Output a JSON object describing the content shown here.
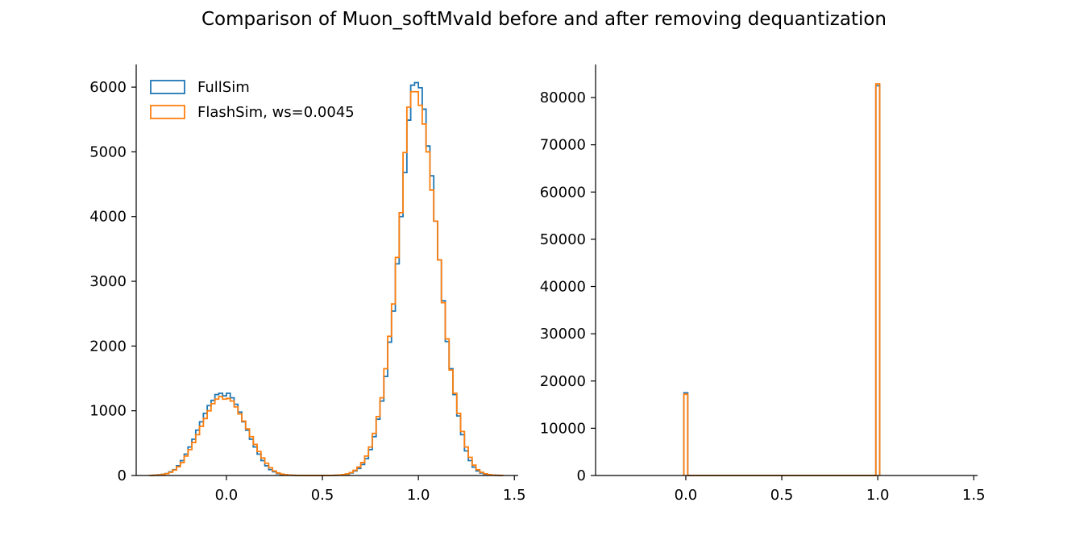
{
  "figure": {
    "title": "Comparison of Muon_softMvaId before and after removing dequantization"
  },
  "chart_data": [
    {
      "type": "histogram-step",
      "name": "with-dequantization",
      "xlim": [
        -0.47,
        1.52
      ],
      "ylim": [
        0,
        6350
      ],
      "xticks": [
        0.0,
        0.5,
        1.0,
        1.5
      ],
      "xtick_labels": [
        "0.0",
        "0.5",
        "1.0",
        "1.5"
      ],
      "yticks": [
        0,
        1000,
        2000,
        3000,
        4000,
        5000,
        6000
      ],
      "ytick_labels": [
        "0",
        "1000",
        "2000",
        "3000",
        "4000",
        "5000",
        "6000"
      ],
      "legend": {
        "placement": "top-left",
        "entries": [
          "FullSim",
          "FlashSim, ws=0.0045"
        ]
      },
      "bin_edges": [
        -0.4,
        -0.38,
        -0.36,
        -0.34,
        -0.32,
        -0.3,
        -0.28,
        -0.26,
        -0.24,
        -0.22,
        -0.2,
        -0.18,
        -0.16,
        -0.14,
        -0.12,
        -0.1,
        -0.08,
        -0.06,
        -0.04,
        -0.02,
        0.0,
        0.02,
        0.04,
        0.06,
        0.08,
        0.1,
        0.12,
        0.14,
        0.16,
        0.18,
        0.2,
        0.22,
        0.24,
        0.26,
        0.28,
        0.3,
        0.32,
        0.34,
        0.36,
        0.38,
        0.4,
        0.42,
        0.44,
        0.46,
        0.48,
        0.5,
        0.52,
        0.54,
        0.56,
        0.58,
        0.6,
        0.62,
        0.64,
        0.66,
        0.68,
        0.7,
        0.72,
        0.74,
        0.76,
        0.78,
        0.8,
        0.82,
        0.84,
        0.86,
        0.88,
        0.9,
        0.92,
        0.94,
        0.96,
        0.98,
        1.0,
        1.02,
        1.04,
        1.06,
        1.08,
        1.1,
        1.12,
        1.14,
        1.16,
        1.18,
        1.2,
        1.22,
        1.24,
        1.26,
        1.28,
        1.3,
        1.32,
        1.34,
        1.36,
        1.38,
        1.4,
        1.42,
        1.44
      ],
      "series": [
        {
          "name": "FullSim",
          "color": "#1f77b4",
          "values": [
            2,
            5,
            10,
            17,
            30,
            58,
            90,
            150,
            230,
            330,
            440,
            560,
            700,
            830,
            960,
            1080,
            1160,
            1250,
            1270,
            1230,
            1270,
            1200,
            1100,
            980,
            830,
            700,
            560,
            440,
            330,
            230,
            150,
            90,
            58,
            30,
            17,
            10,
            5,
            3,
            2,
            1,
            1,
            1,
            1,
            1,
            1,
            1,
            1,
            2,
            3,
            5,
            10,
            20,
            40,
            70,
            110,
            170,
            260,
            400,
            600,
            870,
            1150,
            1530,
            2060,
            2540,
            3270,
            4000,
            4680,
            5490,
            6030,
            6070,
            5990,
            5660,
            5090,
            4630,
            3930,
            3330,
            2700,
            2070,
            1650,
            1250,
            920,
            630,
            380,
            230,
            130,
            70,
            40,
            20,
            10,
            5,
            3,
            1
          ]
        },
        {
          "name": "FlashSim, ws=0.0045",
          "color": "#ff7f0e",
          "values": [
            2,
            4,
            9,
            16,
            28,
            50,
            84,
            135,
            200,
            300,
            400,
            510,
            630,
            760,
            880,
            1000,
            1110,
            1180,
            1220,
            1180,
            1190,
            1150,
            1060,
            950,
            840,
            720,
            600,
            480,
            370,
            270,
            190,
            120,
            70,
            40,
            22,
            12,
            6,
            3,
            2,
            1,
            1,
            1,
            1,
            1,
            1,
            1,
            1,
            2,
            4,
            7,
            13,
            25,
            45,
            80,
            130,
            200,
            300,
            440,
            650,
            910,
            1200,
            1650,
            2150,
            2650,
            3370,
            4060,
            4990,
            5690,
            5930,
            5930,
            5720,
            5430,
            5000,
            4410,
            3930,
            3330,
            2670,
            2110,
            1630,
            1270,
            960,
            680,
            440,
            280,
            160,
            90,
            50,
            26,
            13,
            6,
            3,
            1
          ]
        }
      ]
    },
    {
      "type": "histogram-step",
      "name": "without-dequantization",
      "xlim": [
        -0.47,
        1.52
      ],
      "ylim": [
        0,
        87000
      ],
      "xticks": [
        0.0,
        0.5,
        1.0,
        1.5
      ],
      "xtick_labels": [
        "0.0",
        "0.5",
        "1.0",
        "1.5"
      ],
      "yticks": [
        0,
        10000,
        20000,
        30000,
        40000,
        50000,
        60000,
        70000,
        80000
      ],
      "ytick_labels": [
        "0",
        "10000",
        "20000",
        "30000",
        "40000",
        "50000",
        "60000",
        "70000",
        "80000"
      ],
      "bin_edges": [
        -0.01,
        0.01,
        0.99,
        1.01
      ],
      "series": [
        {
          "name": "FullSim",
          "color": "#1f77b4",
          "values": [
            17500,
            0,
            82500
          ]
        },
        {
          "name": "FlashSim, ws=0.0045",
          "color": "#ff7f0e",
          "values": [
            17200,
            0,
            82900
          ]
        }
      ]
    }
  ]
}
